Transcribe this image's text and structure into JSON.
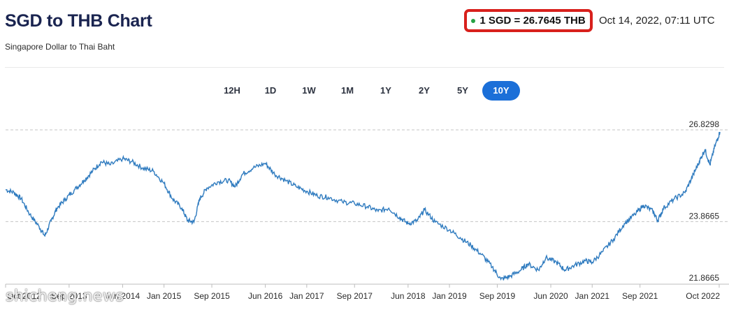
{
  "header": {
    "title": "SGD to THB Chart",
    "subtitle": "Singapore Dollar to Thai Baht",
    "rate_text": "1 SGD = 26.7645 THB",
    "timestamp": "Oct 14, 2022, 07:11 UTC"
  },
  "colors": {
    "accent": "#1b6fd8",
    "line": "#2f7bbf",
    "highlight": "#d8201c",
    "live_dot": "#25a244"
  },
  "tabs": [
    {
      "label": "12H"
    },
    {
      "label": "1D"
    },
    {
      "label": "1W"
    },
    {
      "label": "1M"
    },
    {
      "label": "1Y"
    },
    {
      "label": "2Y"
    },
    {
      "label": "5Y"
    },
    {
      "label": "10Y",
      "active": true
    }
  ],
  "watermark": "shicheng.news",
  "chart_data": {
    "type": "line",
    "title": "SGD to THB Chart",
    "xlabel": "",
    "ylabel": "",
    "ylim": [
      21.8665,
      26.8298
    ],
    "y_ticks": [
      26.8298,
      23.8665,
      21.8665
    ],
    "y_tick_labels": [
      "26.8298",
      "23.8665",
      "21.8665"
    ],
    "x_ticks": [
      {
        "x": 2012.78,
        "label": "Oct 2012"
      },
      {
        "x": 2013.67,
        "label": "Sep 2013"
      },
      {
        "x": 2014.42,
        "label": "Jun 2014"
      },
      {
        "x": 2015.0,
        "label": "Jan 2015"
      },
      {
        "x": 2015.67,
        "label": "Sep 2015"
      },
      {
        "x": 2016.42,
        "label": "Jun 2016"
      },
      {
        "x": 2017.0,
        "label": "Jan 2017"
      },
      {
        "x": 2017.67,
        "label": "Sep 2017"
      },
      {
        "x": 2018.42,
        "label": "Jun 2018"
      },
      {
        "x": 2019.0,
        "label": "Jan 2019"
      },
      {
        "x": 2019.67,
        "label": "Sep 2019"
      },
      {
        "x": 2020.42,
        "label": "Jun 2020"
      },
      {
        "x": 2021.0,
        "label": "Jan 2021"
      },
      {
        "x": 2021.67,
        "label": "Sep 2021"
      },
      {
        "x": 2022.78,
        "label": "Oct 2022"
      }
    ],
    "xlim": [
      2012.78,
      2022.79
    ],
    "grid": "horizontal dashed",
    "series": [
      {
        "values": [
          [
            2012.78,
            24.9
          ],
          [
            2012.9,
            24.8
          ],
          [
            2013.0,
            24.6
          ],
          [
            2013.12,
            24.1
          ],
          [
            2013.25,
            23.7
          ],
          [
            2013.33,
            23.4
          ],
          [
            2013.42,
            23.9
          ],
          [
            2013.5,
            24.3
          ],
          [
            2013.62,
            24.6
          ],
          [
            2013.75,
            24.9
          ],
          [
            2013.88,
            25.2
          ],
          [
            2014.0,
            25.5
          ],
          [
            2014.12,
            25.8
          ],
          [
            2014.25,
            25.7
          ],
          [
            2014.42,
            25.9
          ],
          [
            2014.55,
            25.8
          ],
          [
            2014.7,
            25.6
          ],
          [
            2014.85,
            25.5
          ],
          [
            2015.0,
            25.1
          ],
          [
            2015.12,
            24.6
          ],
          [
            2015.25,
            24.3
          ],
          [
            2015.33,
            23.9
          ],
          [
            2015.42,
            23.85
          ],
          [
            2015.5,
            24.6
          ],
          [
            2015.6,
            24.95
          ],
          [
            2015.75,
            25.15
          ],
          [
            2015.9,
            25.2
          ],
          [
            2016.0,
            25.0
          ],
          [
            2016.1,
            25.4
          ],
          [
            2016.25,
            25.6
          ],
          [
            2016.42,
            25.75
          ],
          [
            2016.55,
            25.4
          ],
          [
            2016.7,
            25.2
          ],
          [
            2016.85,
            25.0
          ],
          [
            2017.0,
            24.85
          ],
          [
            2017.15,
            24.7
          ],
          [
            2017.3,
            24.65
          ],
          [
            2017.5,
            24.5
          ],
          [
            2017.67,
            24.45
          ],
          [
            2017.85,
            24.35
          ],
          [
            2018.0,
            24.2
          ],
          [
            2018.15,
            24.3
          ],
          [
            2018.3,
            24.0
          ],
          [
            2018.42,
            23.8
          ],
          [
            2018.55,
            23.9
          ],
          [
            2018.65,
            24.25
          ],
          [
            2018.8,
            23.85
          ],
          [
            2019.0,
            23.6
          ],
          [
            2019.15,
            23.35
          ],
          [
            2019.3,
            23.1
          ],
          [
            2019.45,
            22.8
          ],
          [
            2019.6,
            22.4
          ],
          [
            2019.72,
            22.0
          ],
          [
            2019.85,
            22.1
          ],
          [
            2020.0,
            22.3
          ],
          [
            2020.1,
            22.5
          ],
          [
            2020.25,
            22.3
          ],
          [
            2020.35,
            22.7
          ],
          [
            2020.5,
            22.55
          ],
          [
            2020.62,
            22.3
          ],
          [
            2020.75,
            22.45
          ],
          [
            2020.9,
            22.6
          ],
          [
            2021.0,
            22.55
          ],
          [
            2021.15,
            22.9
          ],
          [
            2021.3,
            23.3
          ],
          [
            2021.45,
            23.8
          ],
          [
            2021.6,
            24.1
          ],
          [
            2021.72,
            24.4
          ],
          [
            2021.85,
            24.2
          ],
          [
            2021.92,
            23.9
          ],
          [
            2022.0,
            24.3
          ],
          [
            2022.15,
            24.6
          ],
          [
            2022.3,
            24.8
          ],
          [
            2022.42,
            25.4
          ],
          [
            2022.5,
            25.8
          ],
          [
            2022.58,
            26.2
          ],
          [
            2022.65,
            25.7
          ],
          [
            2022.72,
            26.3
          ],
          [
            2022.79,
            26.7645
          ]
        ]
      }
    ]
  }
}
